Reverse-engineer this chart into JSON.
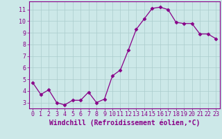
{
  "x": [
    0,
    1,
    2,
    3,
    4,
    5,
    6,
    7,
    8,
    9,
    10,
    11,
    12,
    13,
    14,
    15,
    16,
    17,
    18,
    19,
    20,
    21,
    22,
    23
  ],
  "y": [
    4.7,
    3.7,
    4.1,
    3.0,
    2.8,
    3.2,
    3.2,
    3.9,
    3.0,
    3.3,
    5.3,
    5.8,
    7.5,
    9.3,
    10.2,
    11.1,
    11.2,
    11.0,
    9.9,
    9.8,
    9.8,
    8.9,
    8.9,
    8.5
  ],
  "line_color": "#880088",
  "marker": "D",
  "marker_size": 2.5,
  "bg_color": "#cce8e8",
  "grid_color": "#aacccc",
  "xlabel": "Windchill (Refroidissement éolien,°C)",
  "xlabel_color": "#880088",
  "xlabel_fontsize": 7,
  "ylabel_ticks": [
    3,
    4,
    5,
    6,
    7,
    8,
    9,
    10,
    11
  ],
  "ylim": [
    2.5,
    11.7
  ],
  "xlim": [
    -0.5,
    23.5
  ],
  "tick_fontsize": 6,
  "tick_color": "#880088",
  "spine_color": "#880088",
  "axis_bg": "#cce8e8"
}
